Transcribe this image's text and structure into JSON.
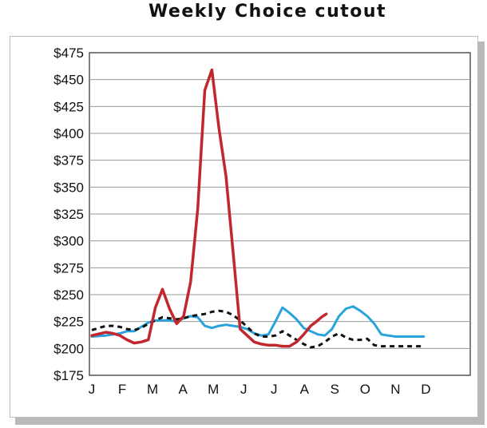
{
  "title": "Weekly Choice cutout",
  "chart_data": {
    "type": "line",
    "title": "Weekly Choice cutout",
    "xlabel": "",
    "ylabel": "",
    "ylim": [
      175,
      475
    ],
    "yticks": [
      175,
      200,
      225,
      250,
      275,
      300,
      325,
      350,
      375,
      400,
      425,
      450,
      475
    ],
    "ytick_labels": [
      "$175",
      "$200",
      "$225",
      "$250",
      "$275",
      "$300",
      "$325",
      "$350",
      "$375",
      "$400",
      "$425",
      "$450",
      "$475"
    ],
    "xlim": [
      0,
      52
    ],
    "months": [
      "J",
      "F",
      "M",
      "A",
      "M",
      "J",
      "J",
      "A",
      "S",
      "O",
      "N",
      "D"
    ],
    "month_positions": [
      0,
      4.3,
      8.6,
      12.9,
      17.2,
      21.5,
      25.8,
      30.1,
      34.4,
      38.7,
      43,
      47.3
    ],
    "grid": true,
    "legend": "none",
    "series": [
      {
        "color": "#c1272d",
        "style": "solid",
        "width": 3.5,
        "x": [
          0,
          2,
          3,
          4,
          5,
          6,
          7,
          8,
          9,
          10,
          11,
          12,
          13,
          14,
          15,
          16,
          17,
          18,
          19,
          20,
          21,
          22,
          23,
          24,
          25,
          26,
          27,
          28,
          29,
          30,
          31,
          31.8,
          32.5,
          33.2
        ],
        "y": [
          212,
          215,
          214,
          212,
          208,
          205,
          206,
          208,
          238,
          255,
          237,
          223,
          230,
          262,
          330,
          440,
          459,
          405,
          360,
          290,
          218,
          212,
          206,
          204,
          203,
          203,
          202,
          202,
          206,
          213,
          221,
          225,
          229,
          232
        ]
      },
      {
        "color": "#29a3dc",
        "style": "solid",
        "width": 3,
        "x": [
          0,
          2,
          4,
          5,
          6,
          7,
          8,
          9,
          10,
          11,
          12,
          13,
          14,
          15,
          16,
          17,
          18,
          19,
          20,
          21,
          22,
          23,
          24,
          25,
          26,
          27,
          28,
          29,
          30,
          31,
          32,
          33,
          34,
          35,
          36,
          37,
          38,
          39,
          40,
          41,
          42,
          43,
          44,
          45,
          46,
          47
        ],
        "y": [
          211,
          212,
          214,
          216,
          216,
          220,
          224,
          226,
          226,
          226,
          225,
          228,
          230,
          229,
          221,
          219,
          221,
          222,
          221,
          220,
          218,
          214,
          212,
          213,
          225,
          238,
          233,
          227,
          219,
          216,
          213,
          212,
          218,
          230,
          237,
          239,
          235,
          230,
          223,
          213,
          212,
          211,
          211,
          211,
          211,
          211
        ]
      },
      {
        "color": "#111111",
        "style": "dashed",
        "width": 3,
        "x": [
          0,
          1,
          2,
          3,
          4,
          5,
          6,
          7,
          8,
          9,
          10,
          11,
          12,
          13,
          14,
          15,
          16,
          17,
          18,
          19,
          20,
          21,
          22,
          23,
          24,
          25,
          26,
          27,
          28,
          29,
          30,
          31,
          32,
          33,
          34,
          35,
          36,
          37,
          38,
          39,
          40,
          41,
          42,
          43,
          44,
          45,
          46,
          47
        ],
        "y": [
          217,
          219,
          221,
          221,
          220,
          218,
          217,
          219,
          223,
          226,
          229,
          228,
          227,
          228,
          230,
          231,
          232,
          234,
          235,
          234,
          231,
          226,
          220,
          214,
          211,
          211,
          212,
          216,
          212,
          208,
          204,
          201,
          202,
          206,
          211,
          214,
          210,
          208,
          208,
          209,
          203,
          202,
          202,
          202,
          202,
          202,
          202,
          202
        ]
      }
    ]
  }
}
